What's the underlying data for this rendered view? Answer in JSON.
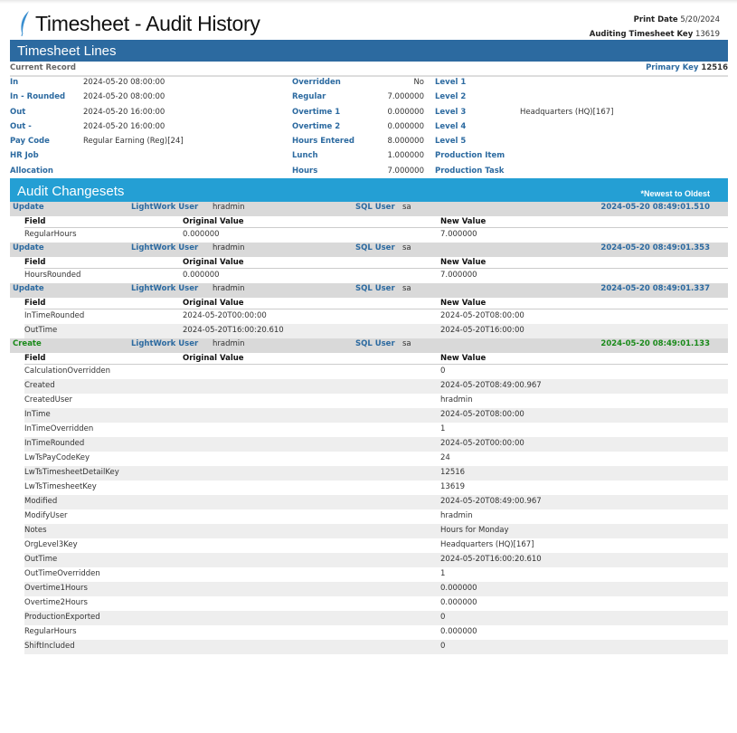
{
  "header": {
    "title": "Timesheet - Audit History",
    "print_date_label": "Print Date",
    "print_date": "5/20/2024",
    "key_label": "Auditing Timesheet Key",
    "key": "13619",
    "logo_icon": "feather-logo"
  },
  "lines": {
    "title": "Timesheet Lines",
    "current_record": "Current Record",
    "primary_key_label": "Primary Key",
    "primary_key": "12516",
    "rows": [
      [
        "In",
        "2024-05-20  08:00:00",
        "Overridden",
        "No",
        "Level 1",
        ""
      ],
      [
        "In - Rounded",
        "2024-05-20  08:00:00",
        "Regular",
        "7.000000",
        "Level 2",
        ""
      ],
      [
        "Out",
        "2024-05-20  16:00:00",
        "Overtime 1",
        "0.000000",
        "Level 3",
        "Headquarters (HQ)[167]"
      ],
      [
        "Out -",
        "2024-05-20  16:00:00",
        "Overtime 2",
        "0.000000",
        "Level 4",
        ""
      ],
      [
        "Pay Code",
        "Regular Earning (Reg)[24]",
        "Hours Entered",
        "8.000000",
        "Level 5",
        ""
      ],
      [
        "HR Job",
        "",
        "Lunch",
        "1.000000",
        "Production Item",
        ""
      ],
      [
        "Allocation",
        "",
        "Hours",
        "7.000000",
        "Production Task",
        ""
      ]
    ]
  },
  "audit": {
    "title": "Audit Changesets",
    "order": "*Newest to Oldest",
    "lw_label": "LightWork User",
    "sql_label": "SQL User",
    "col_field": "Field",
    "col_orig": "Original Value",
    "col_new": "New Value",
    "colors": {
      "update": "#2c6aa0",
      "create": "#1a8a1a"
    },
    "changesets": [
      {
        "type": "Update",
        "lw_user": "hradmin",
        "sql_user": "sa",
        "datetime": "2024-05-20 08:49:01.510",
        "rows": [
          [
            "RegularHours",
            "0.000000",
            "7.000000"
          ]
        ]
      },
      {
        "type": "Update",
        "lw_user": "hradmin",
        "sql_user": "sa",
        "datetime": "2024-05-20 08:49:01.353",
        "rows": [
          [
            "HoursRounded",
            "0.000000",
            "7.000000"
          ]
        ]
      },
      {
        "type": "Update",
        "lw_user": "hradmin",
        "sql_user": "sa",
        "datetime": "2024-05-20 08:49:01.337",
        "rows": [
          [
            "InTimeRounded",
            "2024-05-20T00:00:00",
            "2024-05-20T08:00:00"
          ],
          [
            "OutTime",
            "2024-05-20T16:00:20.610",
            "2024-05-20T16:00:00"
          ]
        ]
      },
      {
        "type": "Create",
        "lw_user": "hradmin",
        "sql_user": "sa",
        "datetime": "2024-05-20 08:49:01.133",
        "rows": [
          [
            "CalculationOverridden",
            "",
            "0"
          ],
          [
            "Created",
            "",
            "2024-05-20T08:49:00.967"
          ],
          [
            "CreatedUser",
            "",
            "hradmin"
          ],
          [
            "InTime",
            "",
            "2024-05-20T08:00:00"
          ],
          [
            "InTimeOverridden",
            "",
            "1"
          ],
          [
            "InTimeRounded",
            "",
            "2024-05-20T00:00:00"
          ],
          [
            "LwTsPayCodeKey",
            "",
            "24"
          ],
          [
            "LwTsTimesheetDetailKey",
            "",
            "12516"
          ],
          [
            "LwTsTimesheetKey",
            "",
            "13619"
          ],
          [
            "Modified",
            "",
            "2024-05-20T08:49:00.967"
          ],
          [
            "ModifyUser",
            "",
            "hradmin"
          ],
          [
            "Notes",
            "",
            "Hours for Monday"
          ],
          [
            "OrgLevel3Key",
            "",
            "Headquarters (HQ)[167]"
          ],
          [
            "OutTime",
            "",
            "2024-05-20T16:00:20.610"
          ],
          [
            "OutTimeOverridden",
            "",
            "1"
          ],
          [
            "Overtime1Hours",
            "",
            "0.000000"
          ],
          [
            "Overtime2Hours",
            "",
            "0.000000"
          ],
          [
            "ProductionExported",
            "",
            "0"
          ],
          [
            "RegularHours",
            "",
            "0.000000"
          ],
          [
            "ShiftIncluded",
            "",
            "0"
          ]
        ]
      }
    ]
  }
}
